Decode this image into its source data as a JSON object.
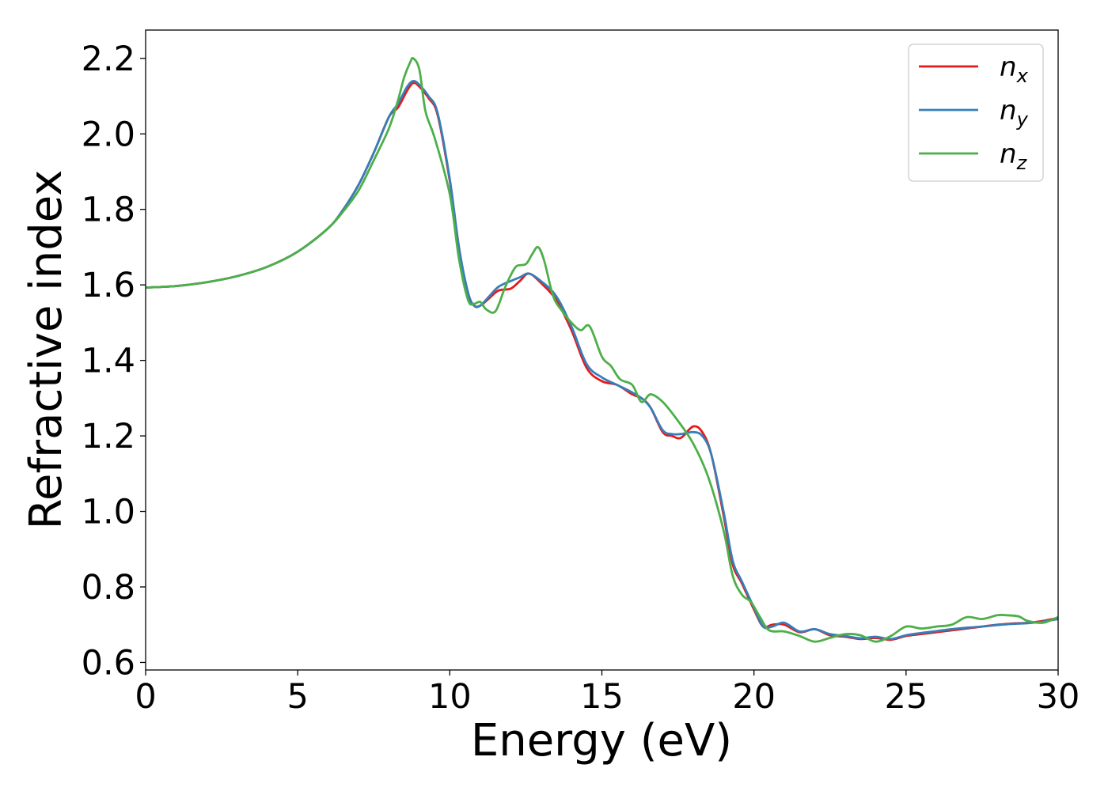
{
  "chart_data": {
    "type": "line",
    "xlabel": "Energy (eV)",
    "ylabel": "Refractive index",
    "xlim": [
      0,
      30
    ],
    "ylim": [
      0.58,
      2.275
    ],
    "xticks": [
      0,
      5,
      10,
      15,
      20,
      25,
      30
    ],
    "xtick_labels": [
      "0",
      "5",
      "10",
      "15",
      "20",
      "25",
      "30"
    ],
    "yticks": [
      0.6,
      0.8,
      1.0,
      1.2,
      1.4,
      1.6,
      1.8,
      2.0,
      2.2
    ],
    "ytick_labels": [
      "0.6",
      "0.8",
      "1.0",
      "1.2",
      "1.4",
      "1.6",
      "1.8",
      "2.0",
      "2.2"
    ],
    "grid": false,
    "legend_position": "top-right",
    "series": [
      {
        "name": "n_x",
        "label_base": "n",
        "label_sub": "x",
        "color": "#e41a1c",
        "x": [
          0,
          1,
          2,
          3,
          4,
          5,
          6,
          6.5,
          7,
          7.5,
          8,
          8.3,
          8.6,
          8.8,
          9.0,
          9.3,
          9.6,
          10,
          10.3,
          10.6,
          10.8,
          11.0,
          11.3,
          11.6,
          12,
          12.3,
          12.6,
          13,
          13.5,
          14,
          14.5,
          15,
          15.5,
          16,
          16.3,
          16.6,
          17,
          17.3,
          17.6,
          18,
          18.3,
          18.6,
          19,
          19.3,
          19.6,
          20,
          20.3,
          20.6,
          21,
          21.5,
          22,
          22.5,
          23,
          23.5,
          24,
          24.5,
          25,
          25.5,
          26,
          26.5,
          27,
          27.5,
          28,
          28.5,
          29,
          29.5,
          30
        ],
        "y": [
          1.593,
          1.597,
          1.607,
          1.623,
          1.648,
          1.688,
          1.75,
          1.8,
          1.865,
          1.95,
          2.045,
          2.07,
          2.115,
          2.135,
          2.125,
          2.095,
          2.05,
          1.875,
          1.7,
          1.575,
          1.545,
          1.545,
          1.565,
          1.585,
          1.59,
          1.61,
          1.63,
          1.605,
          1.56,
          1.48,
          1.38,
          1.345,
          1.335,
          1.31,
          1.3,
          1.275,
          1.21,
          1.2,
          1.195,
          1.225,
          1.21,
          1.15,
          0.99,
          0.86,
          0.81,
          0.74,
          0.695,
          0.7,
          0.7,
          0.68,
          0.688,
          0.672,
          0.668,
          0.662,
          0.665,
          0.66,
          0.67,
          0.675,
          0.68,
          0.685,
          0.69,
          0.695,
          0.7,
          0.703,
          0.705,
          0.71,
          0.718
        ]
      },
      {
        "name": "n_y",
        "label_base": "n",
        "label_sub": "y",
        "color": "#377eb8",
        "x": [
          0,
          1,
          2,
          3,
          4,
          5,
          6,
          6.5,
          7,
          7.5,
          8,
          8.3,
          8.6,
          8.8,
          9.0,
          9.3,
          9.6,
          10,
          10.3,
          10.6,
          10.8,
          11.0,
          11.3,
          11.6,
          12,
          12.3,
          12.6,
          13,
          13.5,
          14,
          14.5,
          15,
          15.5,
          16,
          16.3,
          16.6,
          17,
          17.3,
          17.6,
          18,
          18.3,
          18.6,
          19,
          19.3,
          19.6,
          20,
          20.3,
          20.6,
          21,
          21.5,
          22,
          22.5,
          23,
          23.5,
          24,
          24.5,
          25,
          25.5,
          26,
          26.5,
          27,
          27.5,
          28,
          28.5,
          29,
          29.5,
          30
        ],
        "y": [
          1.593,
          1.597,
          1.607,
          1.623,
          1.648,
          1.688,
          1.75,
          1.8,
          1.865,
          1.95,
          2.045,
          2.08,
          2.125,
          2.14,
          2.13,
          2.1,
          2.055,
          1.88,
          1.7,
          1.58,
          1.545,
          1.545,
          1.57,
          1.595,
          1.61,
          1.62,
          1.63,
          1.61,
          1.57,
          1.49,
          1.39,
          1.355,
          1.335,
          1.315,
          1.3,
          1.275,
          1.215,
          1.205,
          1.205,
          1.21,
          1.2,
          1.15,
          1.0,
          0.87,
          0.815,
          0.745,
          0.695,
          0.695,
          0.705,
          0.682,
          0.688,
          0.675,
          0.67,
          0.664,
          0.668,
          0.662,
          0.672,
          0.678,
          0.683,
          0.688,
          0.692,
          0.695,
          0.699,
          0.702,
          0.704,
          0.708,
          0.715
        ]
      },
      {
        "name": "n_z",
        "label_base": "n",
        "label_sub": "z",
        "color": "#4daf4a",
        "x": [
          0,
          1,
          2,
          3,
          4,
          5,
          6,
          6.5,
          7,
          7.5,
          8,
          8.3,
          8.5,
          8.7,
          8.8,
          9.0,
          9.2,
          9.5,
          10,
          10.3,
          10.6,
          10.8,
          11.0,
          11.2,
          11.5,
          11.8,
          12.0,
          12.2,
          12.5,
          12.7,
          12.9,
          13.1,
          13.4,
          13.7,
          14,
          14.3,
          14.6,
          15,
          15.3,
          15.6,
          16,
          16.3,
          16.6,
          17,
          17.5,
          18,
          18.5,
          19,
          19.3,
          19.6,
          19.9,
          20.2,
          20.5,
          21,
          21.5,
          22,
          22.5,
          23,
          23.5,
          24,
          24.5,
          25,
          25.5,
          26,
          26.5,
          27,
          27.5,
          28,
          28.3,
          28.7,
          29,
          29.5,
          30
        ],
        "y": [
          1.593,
          1.597,
          1.607,
          1.623,
          1.648,
          1.688,
          1.75,
          1.795,
          1.85,
          1.93,
          2.015,
          2.09,
          2.15,
          2.19,
          2.2,
          2.17,
          2.06,
          1.99,
          1.84,
          1.67,
          1.56,
          1.55,
          1.555,
          1.535,
          1.53,
          1.59,
          1.625,
          1.65,
          1.655,
          1.68,
          1.7,
          1.665,
          1.57,
          1.53,
          1.5,
          1.48,
          1.49,
          1.41,
          1.385,
          1.35,
          1.335,
          1.29,
          1.31,
          1.29,
          1.24,
          1.18,
          1.09,
          0.95,
          0.83,
          0.78,
          0.76,
          0.72,
          0.685,
          0.682,
          0.67,
          0.655,
          0.665,
          0.675,
          0.672,
          0.655,
          0.67,
          0.695,
          0.69,
          0.695,
          0.7,
          0.72,
          0.715,
          0.725,
          0.725,
          0.722,
          0.71,
          0.705,
          0.72
        ]
      }
    ]
  }
}
